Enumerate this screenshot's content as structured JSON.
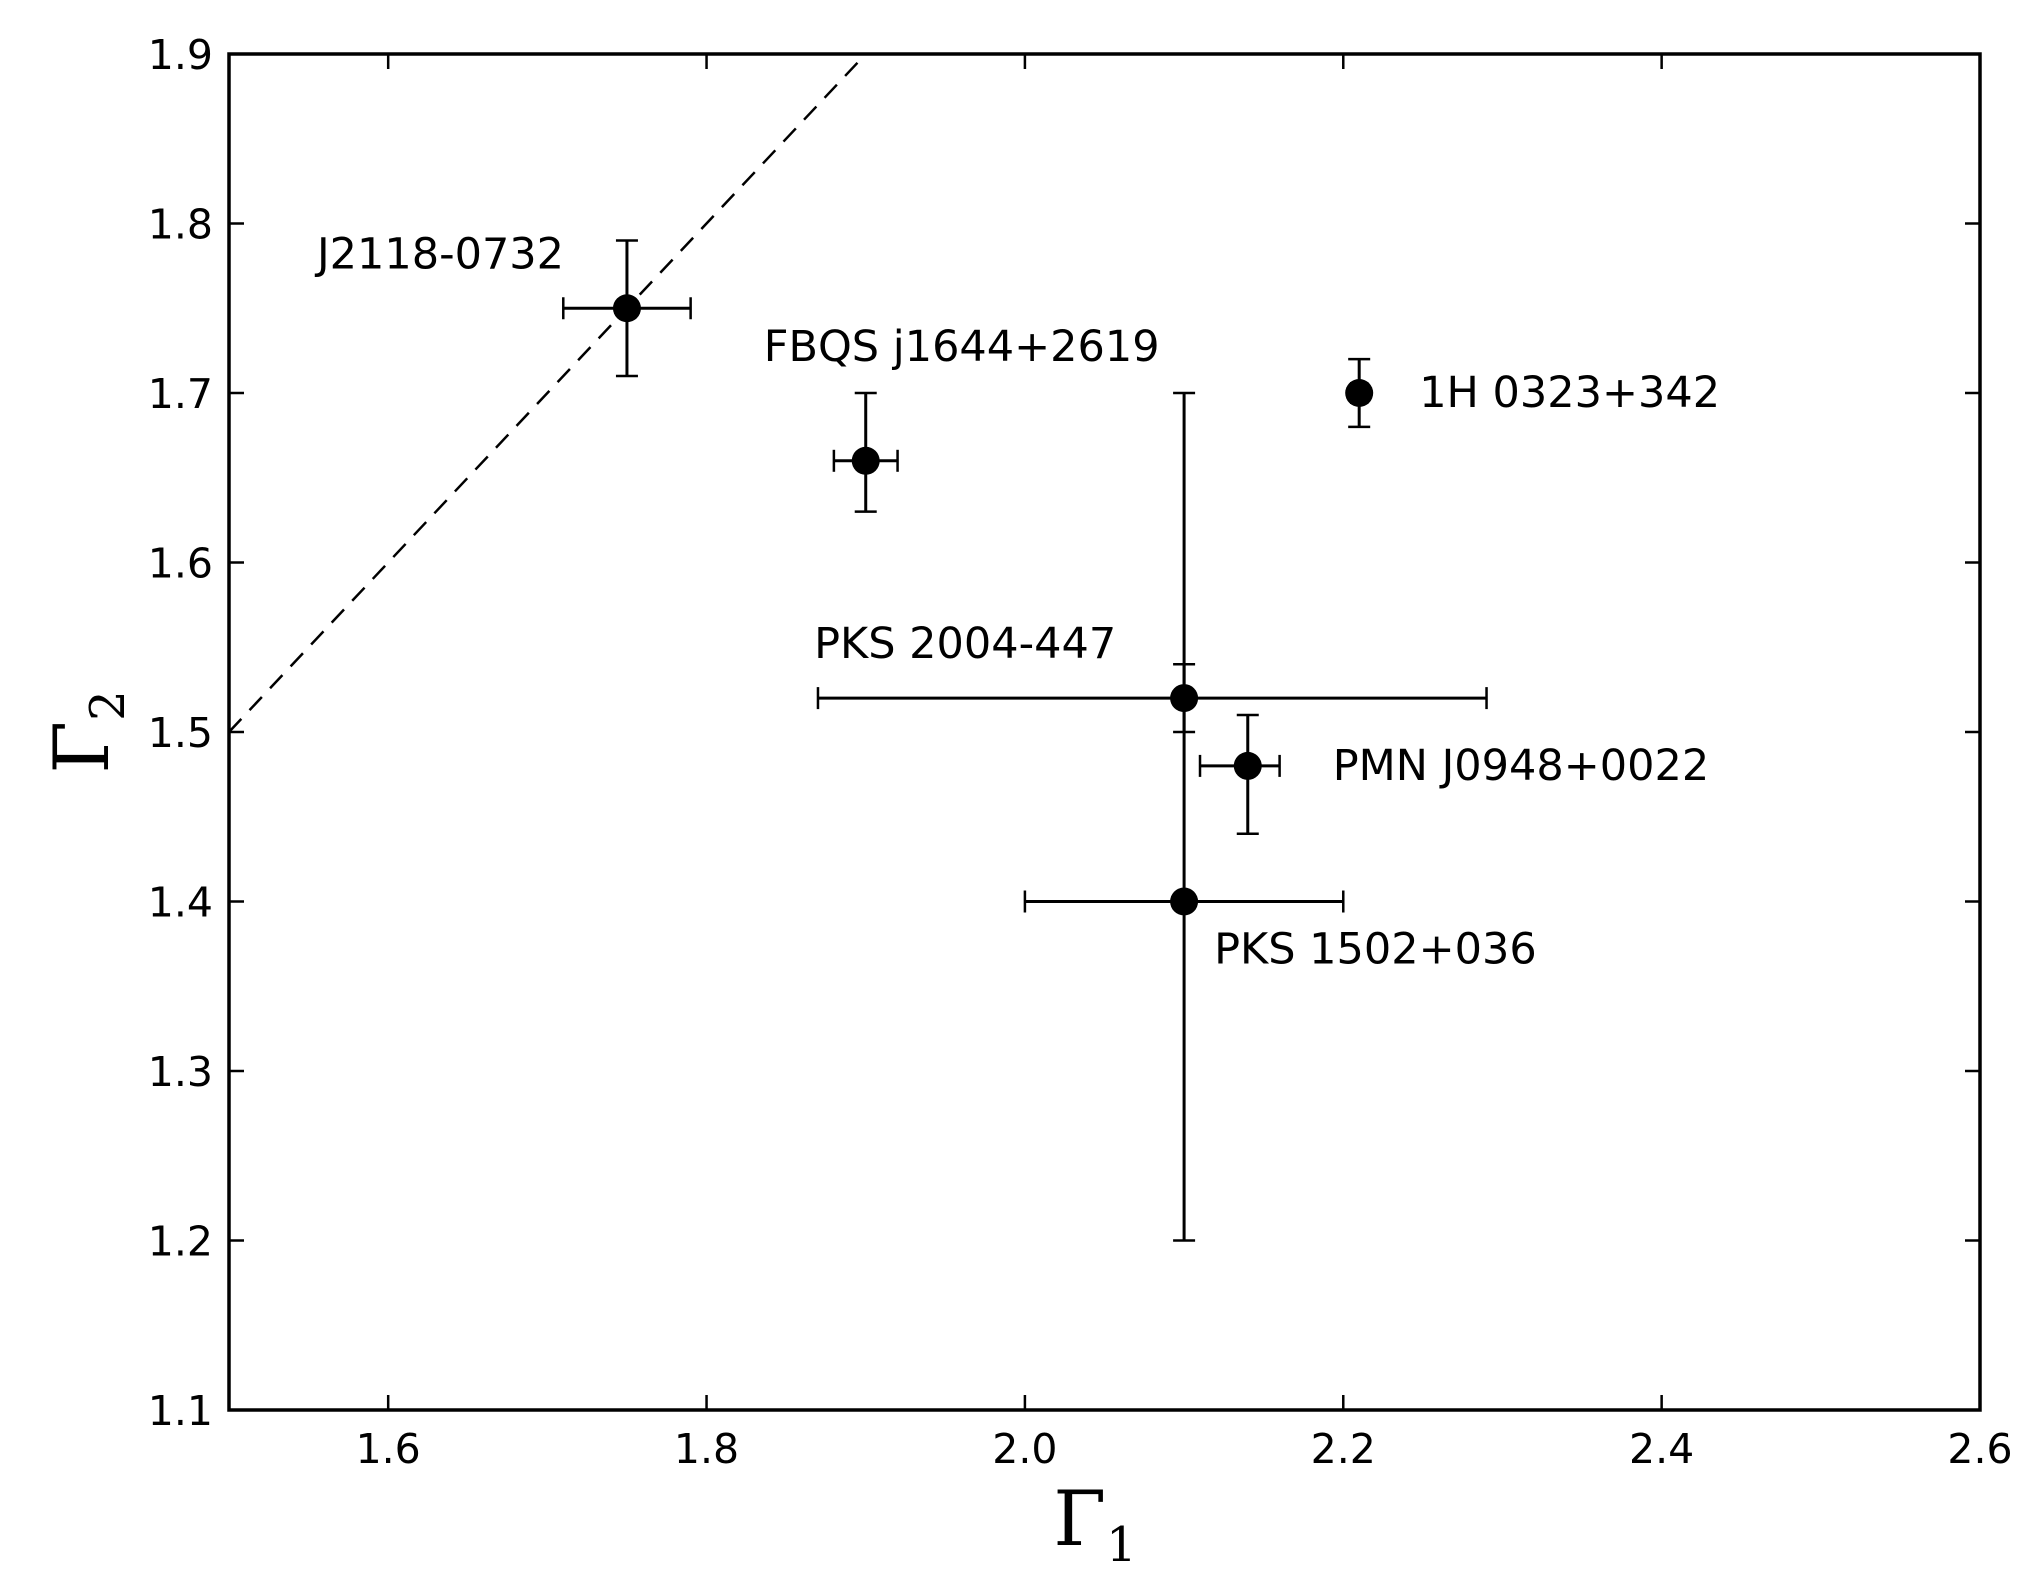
{
  "chart_data": {
    "type": "scatter",
    "title": "",
    "xlabel": "Γ",
    "xlabel_sub": "1",
    "ylabel": "Γ",
    "ylabel_sub": "2",
    "xlim": [
      1.5,
      2.6
    ],
    "ylim": [
      1.1,
      1.9
    ],
    "x_ticks": [
      1.6,
      1.8,
      2.0,
      2.2,
      2.4,
      2.6
    ],
    "x_tick_labels": [
      "1.6",
      "1.8",
      "2.0",
      "2.2",
      "2.4",
      "2.6"
    ],
    "y_ticks": [
      1.1,
      1.2,
      1.3,
      1.4,
      1.5,
      1.6,
      1.7,
      1.8,
      1.9
    ],
    "y_tick_labels": [
      "1.1",
      "1.2",
      "1.3",
      "1.4",
      "1.5",
      "1.6",
      "1.7",
      "1.8",
      "1.9"
    ],
    "grid": false,
    "marker_color": "#000000",
    "points": [
      {
        "label": "J2118-0732",
        "x": 1.75,
        "y": 1.75,
        "xerr": [
          0.04,
          0.04
        ],
        "yerr": [
          0.04,
          0.04
        ]
      },
      {
        "label": "FBQS j1644+2619",
        "x": 1.9,
        "y": 1.66,
        "xerr": [
          0.02,
          0.02
        ],
        "yerr": [
          0.03,
          0.04
        ]
      },
      {
        "label": "1H 0323+342",
        "x": 2.21,
        "y": 1.7,
        "xerr": [
          0.005,
          0.005
        ],
        "yerr": [
          0.02,
          0.02
        ]
      },
      {
        "label": "PKS 2004-447",
        "x": 2.1,
        "y": 1.52,
        "xerr": [
          0.23,
          0.19
        ],
        "yerr": [
          0.02,
          0.02
        ]
      },
      {
        "label": "PMN J0948+0022",
        "x": 2.14,
        "y": 1.48,
        "xerr": [
          0.03,
          0.02
        ],
        "yerr": [
          0.04,
          0.03
        ]
      },
      {
        "label": "PKS 1502+036",
        "x": 2.1,
        "y": 1.4,
        "xerr": [
          0.1,
          0.1
        ],
        "yerr": [
          0.2,
          0.3
        ]
      }
    ],
    "reference_line": {
      "style": "dashed",
      "relation": "y = x"
    }
  }
}
